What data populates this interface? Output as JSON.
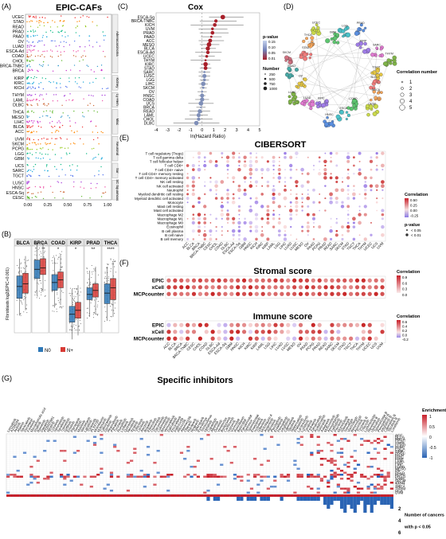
{
  "figure": {
    "panel_labels": [
      "(A)",
      "(B)",
      "(C)",
      "(D)",
      "(E)",
      "(F)",
      "(G)"
    ]
  },
  "chart_data": [
    {
      "id": "A",
      "type": "scatter",
      "title": "EPIC-CAFs",
      "xlim": [
        0,
        1
      ],
      "xticks": [
        "0.00",
        "0.25",
        "0.50",
        "0.75",
        "1.00"
      ],
      "groups": [
        {
          "name": "Adenocarcinoma",
          "cancers": [
            "UCEC",
            "STAD",
            "READ",
            "PRAD",
            "PAAD",
            "OV",
            "LUAD",
            "ESCA-Ad",
            "COAD",
            "CHOL",
            "BRCA-TNBC",
            "BRCA"
          ]
        },
        {
          "name": "Kidney",
          "cancers": [
            "KIRP",
            "KIRC",
            "KICH"
          ]
        },
        {
          "name": "Ly-Hem",
          "cancers": [
            "THYM",
            "LAML",
            "DLBC"
          ]
        },
        {
          "name": "Misc",
          "cancers": [
            "THCA",
            "MESO",
            "LIHC",
            "BLCA",
            "ACC"
          ]
        },
        {
          "name": "Neuronal",
          "cancers": [
            "UVM",
            "SKCM",
            "PCPG",
            "LGG",
            "GBM"
          ]
        },
        {
          "name": "Sar",
          "cancers": [
            "UCS",
            "SARC",
            "TGCT"
          ]
        },
        {
          "name": "SC Squamous",
          "cancers": [
            "LUSC",
            "HNSC",
            "ESCA-Sq",
            "CESC"
          ]
        }
      ]
    },
    {
      "id": "B",
      "type": "box",
      "ylabel": "Fibroblasts log2(EPIC+0.001)",
      "categories": [
        "BLCA",
        "BRCA",
        "COAD",
        "KIRP",
        "PRAD",
        "THCA"
      ],
      "significance": [
        "",
        "",
        "*",
        "*",
        "**",
        "****"
      ],
      "series": [
        {
          "name": "N0",
          "color": "#2e78b7",
          "medians": [
            -4.5,
            -3.2,
            -4.2,
            -6.6,
            -5.1,
            -5.0
          ],
          "q1": [
            -5.4,
            -3.9,
            -4.8,
            -7.2,
            -5.5,
            -5.8
          ],
          "q3": [
            -3.7,
            -2.5,
            -3.6,
            -6.0,
            -4.6,
            -4.3
          ]
        },
        {
          "name": "N+",
          "color": "#d73a35",
          "medians": [
            -4.3,
            -3.1,
            -4.0,
            -6.3,
            -4.8,
            -4.6
          ],
          "q1": [
            -5.0,
            -3.6,
            -4.6,
            -6.9,
            -5.3,
            -5.5
          ],
          "q3": [
            -3.5,
            -2.4,
            -3.4,
            -5.7,
            -4.3,
            -3.9
          ]
        }
      ],
      "legend": [
        "N0",
        "N+"
      ]
    },
    {
      "id": "C",
      "type": "forest",
      "title": "Cox",
      "xlabel": "ln(Hazard Ratio)",
      "xticks": [
        "-4",
        "-3",
        "-2",
        "-1",
        "0",
        "1",
        "2",
        "3",
        "4",
        "5"
      ],
      "categories": [
        "ESCA-Sq",
        "BRCA-TNBC",
        "KICH",
        "UVM",
        "PRAD",
        "PAAD",
        "ACC",
        "MESO",
        "BLCA",
        "ESCA-Ad",
        "UCEC",
        "THYM",
        "KIRC",
        "STAD",
        "SARC",
        "LUSC",
        "LGG",
        "LIHC",
        "SKCM",
        "OV",
        "HNSC",
        "COAD",
        "UCS",
        "BRCA",
        "READ",
        "LAML",
        "CHOL",
        "DLBC"
      ],
      "values": [
        1.8,
        1.2,
        1.1,
        0.9,
        0.9,
        0.8,
        0.7,
        0.6,
        0.5,
        0.5,
        0.4,
        0.3,
        0.3,
        0.3,
        0.2,
        0.2,
        0.2,
        0.1,
        0.1,
        0.0,
        0.0,
        0.0,
        -0.1,
        -0.1,
        -0.2,
        -0.3,
        -0.3,
        -0.5
      ],
      "lower": [
        0.6,
        -0.2,
        -1.0,
        -0.3,
        -0.2,
        -0.1,
        -0.3,
        -0.2,
        -0.1,
        -0.6,
        -0.3,
        -1.0,
        -0.1,
        -0.2,
        -0.3,
        -0.3,
        -0.2,
        -0.3,
        -0.2,
        -0.4,
        -0.3,
        -0.6,
        -1.2,
        -0.5,
        -1.1,
        -1.1,
        -1.5,
        -2.5
      ],
      "upper": [
        3.6,
        3.0,
        3.6,
        2.2,
        2.3,
        1.7,
        1.9,
        1.5,
        1.2,
        1.7,
        1.1,
        1.6,
        0.7,
        0.8,
        0.7,
        0.7,
        0.6,
        0.5,
        0.4,
        0.4,
        0.3,
        0.6,
        1.0,
        0.3,
        0.7,
        0.5,
        0.9,
        1.5
      ],
      "legend": {
        "pvalue_title": "p-value",
        "pvalue_ticks": [
          "0.15",
          "0.10",
          "0.05",
          "0.01"
        ],
        "number_title": "Number",
        "number_values": [
          "250",
          "500",
          "750",
          "1000"
        ]
      }
    },
    {
      "id": "D",
      "type": "network",
      "legend_title": "Correlation number",
      "legend_values": [
        "1",
        "2",
        "3",
        "4",
        "5"
      ],
      "clusters": [
        "BLCA",
        "BRCA",
        "CESC",
        "COAD",
        "ESCA",
        "HNSC",
        "KIRC",
        "LUAD",
        "LUSC",
        "OV",
        "PAAD",
        "SKCM",
        "STAD",
        "THCA",
        "UCEC",
        "GBM",
        "LGG",
        "PRAD",
        "KIRP",
        "SARC",
        "THYM",
        "TGCT"
      ]
    },
    {
      "id": "E",
      "type": "heatmap",
      "title": "CIBERSORT",
      "rows": [
        "T cell regulatory (Tregs)",
        "T cell gamma delta",
        "T cell follicular helper",
        "T cell CD8+",
        "T cell CD4+ naive",
        "T cell CD4+ memory resting",
        "T cell CD4+ memory activated",
        "NK cell resting",
        "NK cell activated",
        "Neutrophil",
        "Myeloid dendritic cell resting",
        "Myeloid dendritic cell activated",
        "Monocyte",
        "Mast cell resting",
        "Mast cell activated",
        "Macrophage M2",
        "Macrophage M1",
        "Macrophage M0",
        "Eosinophil",
        "B cell plasma",
        "B cell naive",
        "B cell memory"
      ],
      "columns": [
        "ACC",
        "BLCA",
        "BRCA",
        "BRCA-TNBC",
        "CESC",
        "CHOL",
        "COAD",
        "DLBC",
        "ESCA-Ad",
        "ESCA-Sq",
        "GBM",
        "HNSC",
        "KICH",
        "KIRC",
        "KIRP",
        "LAML",
        "LGG",
        "LIHC",
        "LUAD",
        "LUSC",
        "MESO",
        "OV",
        "PAAD",
        "PCPG",
        "PRAD",
        "READ",
        "SARC",
        "SKCM",
        "STAD",
        "TGCT",
        "THCA",
        "THYM",
        "UCEC",
        "UCS",
        "UVM"
      ],
      "legend": {
        "title": "Correlation",
        "ticks": [
          "0.50",
          "0.25",
          "0.00",
          "-0.25"
        ],
        "pvalue_title": "p-value",
        "pvalue_labels": [
          "< 0.05",
          "< 0.01"
        ]
      }
    },
    {
      "id": "F1",
      "type": "heatmap",
      "title": "Stromal score",
      "rows": [
        "EPIC",
        "xCell",
        "MCPcounter"
      ],
      "legend": {
        "title": "Correlation",
        "ticks": [
          "0.9",
          "0.6",
          "0.3",
          "0.0"
        ]
      }
    },
    {
      "id": "F2",
      "type": "heatmap",
      "title": "Immune score",
      "rows": [
        "EPIC",
        "xCell",
        "MCPcounter"
      ],
      "columns": [
        "ACC",
        "BLCA",
        "BRCA",
        "BRCA-TNBC",
        "CESC",
        "CHOL",
        "COAD",
        "DLBC",
        "ESCA-Ad",
        "ESCA-Sq",
        "GBM",
        "HNSC",
        "KICH",
        "KIRC",
        "KIRP",
        "LAML",
        "LGG",
        "LIHC",
        "LUAD",
        "LUSC",
        "MESO",
        "OV",
        "PAAD",
        "PCPG",
        "PRAD",
        "READ",
        "SARC",
        "SKCM",
        "STAD",
        "TGCT",
        "THCA",
        "THYM",
        "UCEC",
        "UCS",
        "UVM"
      ],
      "legend": {
        "title": "Correlation",
        "ticks": [
          "0.6",
          "0.4",
          "0.2",
          "0.0",
          "-0.2"
        ]
      }
    },
    {
      "id": "G",
      "type": "heatmap",
      "title": "Specific inhibitors",
      "rows": [
        "ACC",
        "BLCA",
        "BRCA",
        "CESC",
        "CHOL",
        "COAD",
        "DLBC",
        "ESCA",
        "GBM",
        "HNSC",
        "KICH",
        "KIRC",
        "KIRP",
        "LAML",
        "LGG",
        "LIHC",
        "LUAD",
        "MESO",
        "OV",
        "PAAD",
        "PCPG",
        "PRAD",
        "SARC",
        "SKCM",
        "STAD",
        "TGCT",
        "THCA",
        "THYM",
        "UCS",
        "UVM"
      ],
      "columns": [
        "Lenvatinib",
        "AZD6244",
        "Axitinib",
        "Afatinib",
        "Saracatinib",
        "Docetaxel",
        "Foretinib",
        "Mycophenolic acid",
        "Imatinib",
        "Bosutinib",
        "Dasatinib",
        "PD0325901",
        "Nilotinib",
        "Crizotinib",
        "Selumetinib",
        "Sorafenib",
        "Trametinib",
        "Gefitinib",
        "Erlotinib",
        "Pazopanib",
        "Sunitinib",
        "Masitinib",
        "Vandetanib",
        "Lapatinib",
        "Tozasertib",
        "PLX4720",
        "Midostaurin",
        "Motesanib",
        "Cabozantinib",
        "Dovitinib",
        "Regorafenib",
        "Ponatinib",
        "Tivozanib",
        "Ruxolitinib",
        "Linifanib",
        "Quizartinib",
        "Neratinib",
        "Ibrutinib",
        "Tofacitinib",
        "Ceritinib",
        "Alectinib",
        "Brigatinib",
        "Entrectinib",
        "Osimertinib",
        "Dacomitinib",
        "Cobimetinib",
        "Binimetinib",
        "Vemurafenib",
        "Dabrafenib",
        "Encorafenib",
        "Palbociclib",
        "Ribociclib",
        "Abemaciclib",
        "Olaparib",
        "Rucaparib",
        "Niraparib",
        "Talazoparib",
        "Everolimus",
        "Temsirolimus",
        "Idelalisib",
        "Copanlisib",
        "Alpelisib",
        "Duvelisib",
        "Venetoclax",
        "Bortezomib",
        "Carfilzomib",
        "Ixazomib",
        "Vorinostat",
        "Romidepsin",
        "Belinostat",
        "Panobinostat",
        "Selinexor",
        "Tazemetostat",
        "Enasidenib",
        "Ivosidenib",
        "Gilteritinib",
        "Midostaurin A",
        "Avapritinib",
        "Ripretinib",
        "Pexidartinib",
        "Erdafitinib",
        "Pemigatinib",
        "Infigratinib",
        "Capmatinib",
        "Tepotinib",
        "Selpercatinib",
        "Pralsetinib",
        "Larotrectinib",
        "Lorlatinib",
        "Tucatinib",
        "Fedratinib",
        "Zanubrutinib",
        "Acalabrutinib",
        "Sotorasib",
        "Adagrasib",
        "Mobocertinib",
        "Amivantamab",
        "Futibatinib",
        "Pacritinib",
        "Momelotinib",
        "Glasdegib",
        "Sonidegib",
        "Vismodegib",
        "Belumosudil",
        "Asciminib",
        "Tivozanib B",
        "Trilaciclib",
        "Lurbinectedin",
        "Ripretinib B",
        "Umbralisib",
        "Tazemetostat B",
        "Pemigatinib B",
        "Infigratinib B",
        "Capmatinib B",
        "Tepotinib B",
        "Lonafarnib"
      ],
      "legend": {
        "title": "Enrichment",
        "ticks": [
          "1",
          "0.5",
          "0",
          "-0.5",
          "-1"
        ],
        "bottom_labels": [
          "2",
          "Number of cancers",
          "4",
          "with p < 0.05",
          "6"
        ]
      }
    }
  ]
}
